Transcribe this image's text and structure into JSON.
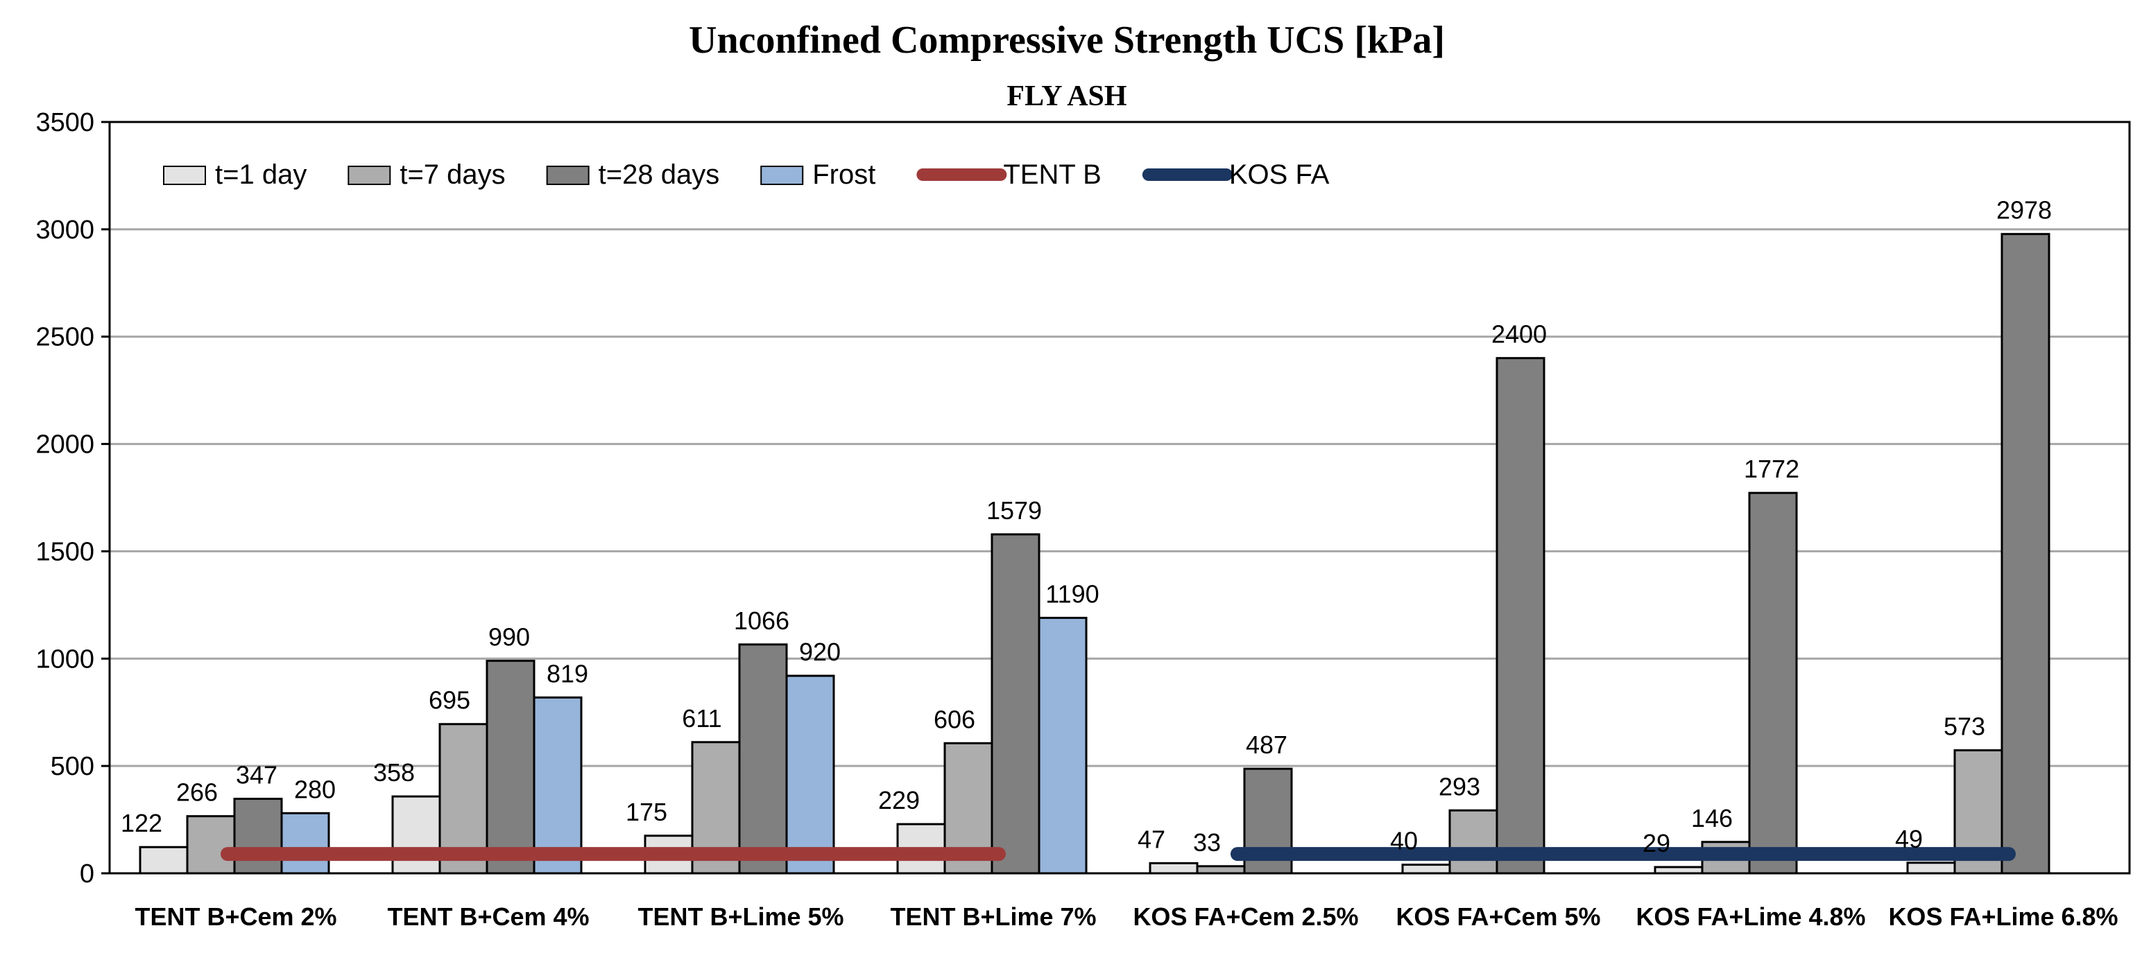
{
  "chart_data": {
    "type": "bar",
    "title": "Unconfined Compressive Strength UCS [kPa]",
    "subtitle": "FLY ASH",
    "xlabel": "",
    "ylabel": "",
    "ylim": [
      0,
      3500
    ],
    "yticks": [
      0,
      500,
      1000,
      1500,
      2000,
      2500,
      3000,
      3500
    ],
    "grid": true,
    "legend_position": "top-left",
    "categories": [
      "TENT B+Cem 2%",
      "TENT B+Cem 4%",
      "TENT B+Lime 5%",
      "TENT B+Lime 7%",
      "KOS FA+Cem 2.5%",
      "KOS FA+Cem 5%",
      "KOS FA+Lime 4.8%",
      "KOS FA+Lime 6.8%"
    ],
    "series": [
      {
        "name": "t=1 day",
        "color": "#e3e3e3",
        "values": [
          122,
          358,
          175,
          229,
          47,
          40,
          29,
          49
        ]
      },
      {
        "name": "t=7 days",
        "color": "#adadad",
        "values": [
          266,
          695,
          611,
          606,
          33,
          293,
          146,
          573
        ]
      },
      {
        "name": "t=28 days",
        "color": "#808080",
        "values": [
          347,
          990,
          1066,
          1579,
          487,
          2400,
          1772,
          2978
        ]
      },
      {
        "name": "Frost",
        "color": "#97b5da",
        "values": [
          280,
          819,
          920,
          1190,
          null,
          null,
          null,
          null
        ]
      }
    ],
    "reference_lines": [
      {
        "name": "TENT B",
        "color": "#9e3b39",
        "value": 90,
        "from_category": 0,
        "to_category": 3
      },
      {
        "name": "KOS FA",
        "color": "#1b3660",
        "value": 90,
        "from_category": 4,
        "to_category": 7
      }
    ]
  }
}
